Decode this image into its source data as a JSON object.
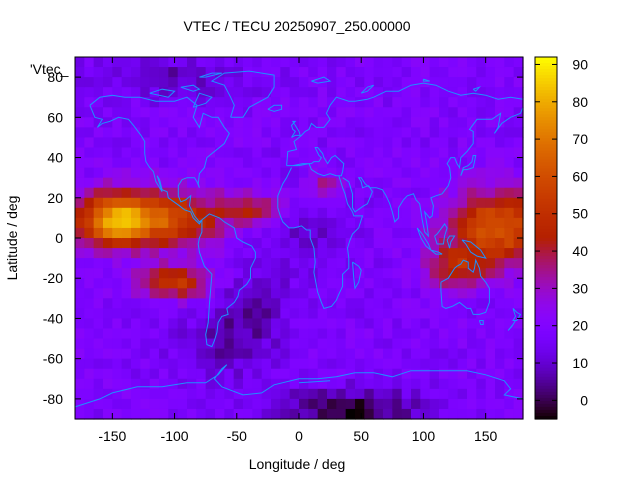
{
  "chart_data": {
    "type": "heatmap",
    "title": "VTEC / TECU 20250907_250.00000",
    "xlabel": "Longitude / deg",
    "ylabel": "Latitude / deg",
    "series_label": "'Vtec_",
    "xlim": [
      -180,
      180
    ],
    "ylim": [
      -90,
      90
    ],
    "xticks": [
      -150,
      -100,
      -50,
      0,
      50,
      100,
      150
    ],
    "yticks": [
      -80,
      -60,
      -40,
      -20,
      0,
      20,
      40,
      60,
      80
    ],
    "colorbar": {
      "min": -5,
      "max": 92,
      "ticks": [
        0,
        10,
        20,
        30,
        40,
        50,
        60,
        70,
        80,
        90
      ],
      "palette": "gnuplot rgbformulae 7,5,15 (black-purple-red-orange-yellow)"
    },
    "description_regions": [
      {
        "region": "equatorial anomaly Pacific/Americas",
        "lon_range": [
          -180,
          -40
        ],
        "lat_range": [
          -30,
          30
        ],
        "peak_value": 90
      },
      {
        "region": "equatorial anomaly western Pacific",
        "lon_range": [
          110,
          180
        ],
        "lat_range": [
          -20,
          25
        ],
        "peak_value": 60
      },
      {
        "region": "Antarctic low",
        "lon_range": [
          0,
          90
        ],
        "lat_range": [
          -90,
          -65
        ],
        "min_value": -3
      }
    ]
  },
  "colors": {
    "coastline": "#1e90ff",
    "background": "#ffffff",
    "frame": "#000000"
  }
}
